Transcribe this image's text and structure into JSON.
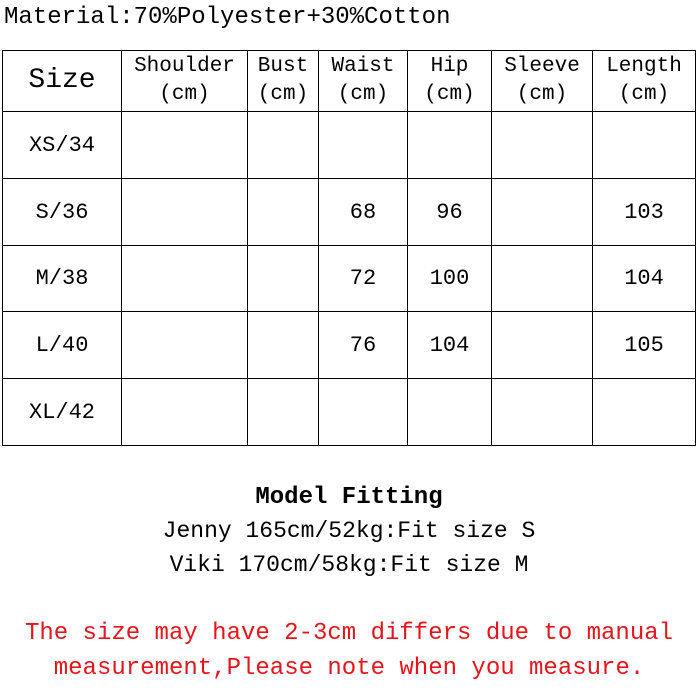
{
  "header": {
    "title": "Material:70%Polyester+30%Cotton"
  },
  "table": {
    "columns": [
      [
        "Size"
      ],
      [
        "Shoulder",
        "(cm)"
      ],
      [
        "Bust",
        "(cm)"
      ],
      [
        "Waist",
        "(cm)"
      ],
      [
        "Hip",
        "(cm)"
      ],
      [
        "Sleeve",
        "(cm)"
      ],
      [
        "Length",
        "(cm)"
      ]
    ],
    "rows": [
      [
        "XS/34",
        null,
        null,
        null,
        null,
        null,
        null
      ],
      [
        "S/36",
        null,
        null,
        68,
        96,
        null,
        103
      ],
      [
        "M/38",
        null,
        null,
        72,
        100,
        null,
        104
      ],
      [
        "L/40",
        null,
        null,
        76,
        104,
        null,
        105
      ],
      [
        "XL/42",
        null,
        null,
        null,
        null,
        null,
        null
      ]
    ]
  },
  "model_fitting": {
    "title": "Model Fitting",
    "lines": [
      "Jenny 165cm/52kg:Fit size S",
      "Viki 170cm/58kg:Fit size M"
    ]
  },
  "note": {
    "lines": [
      "The size may have 2-3cm differs due to manual",
      "measurement,Please note when you measure."
    ]
  }
}
